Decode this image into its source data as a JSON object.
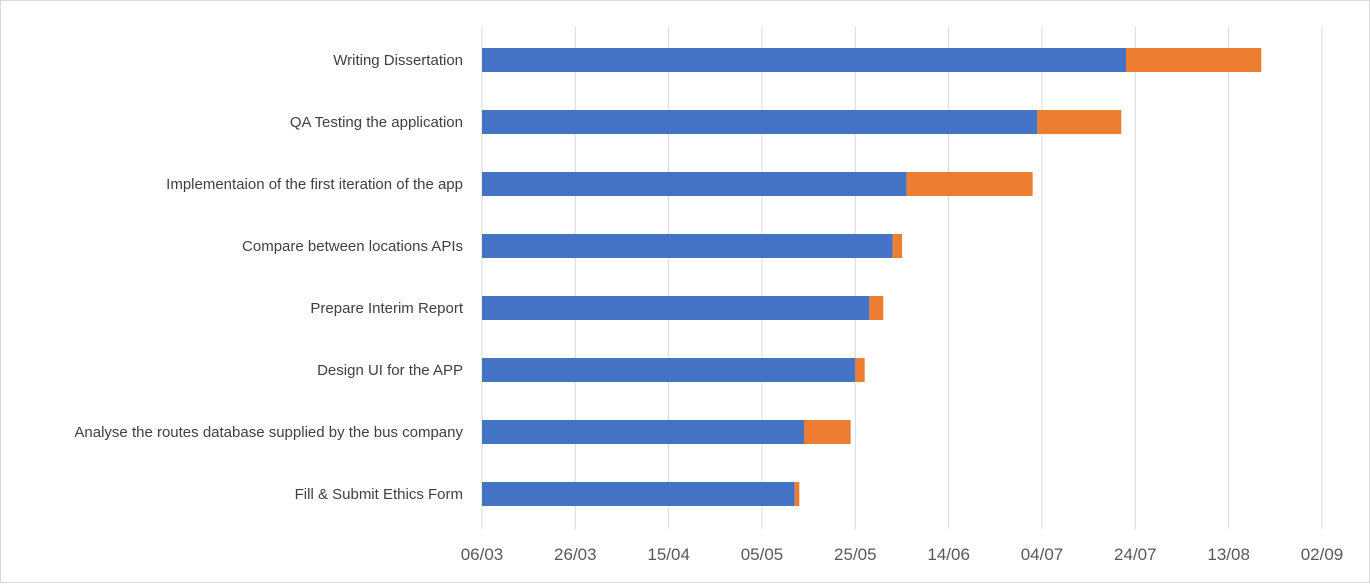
{
  "chart_data": {
    "type": "bar",
    "orientation": "horizontal",
    "stacked": true,
    "categories": [
      "Writing Dissertation",
      "QA Testing the application",
      "Implementaion of the first iteration of the app",
      "Compare between locations APIs",
      "Prepare Interim Report ",
      "Design UI for the APP",
      "Analyse the routes database supplied by the bus company ",
      "Fill & Submit Ethics Form"
    ],
    "series": [
      {
        "color": "#4472c4",
        "values": [
          "2018-07-22",
          "2018-07-03",
          "2018-06-05",
          "2018-06-02",
          "2018-05-28",
          "2018-05-25",
          "2018-05-14",
          "2018-05-12"
        ]
      },
      {
        "color": "#ed7d31",
        "values": [
          29,
          18,
          27,
          2,
          3,
          2,
          10,
          1
        ]
      }
    ],
    "x_axis": {
      "type": "date",
      "ticks": [
        "06/03",
        "26/03",
        "15/04",
        "05/05",
        "25/05",
        "14/06",
        "04/07",
        "24/07",
        "13/08",
        "02/09"
      ],
      "range": [
        "2018-03-06",
        "2018-09-02"
      ]
    },
    "grid": true,
    "legend": "none"
  }
}
